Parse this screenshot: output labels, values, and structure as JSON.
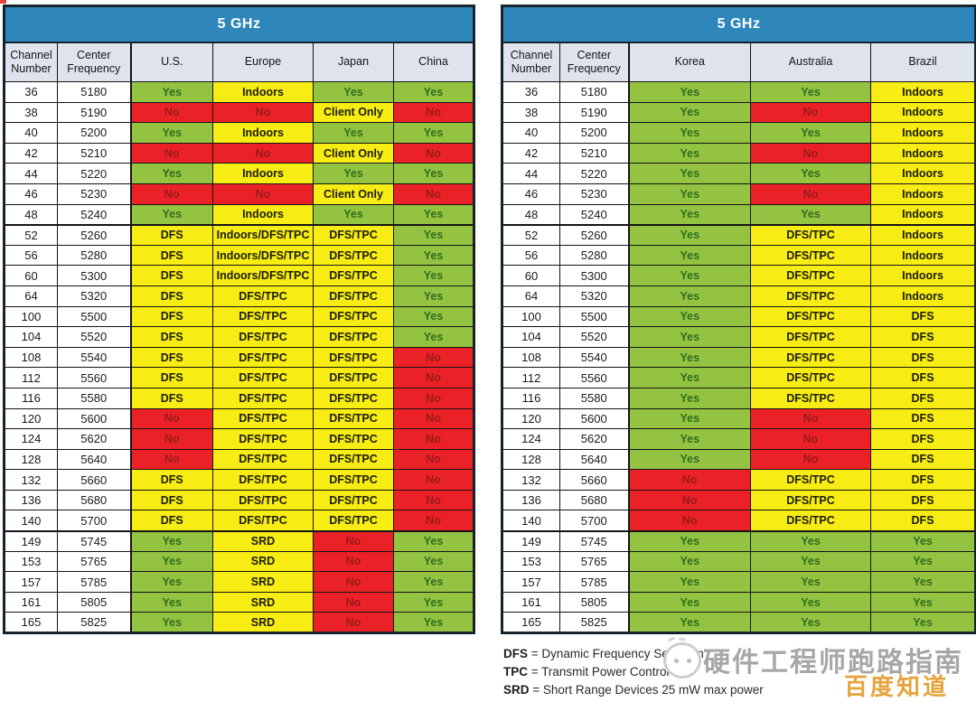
{
  "colors": {
    "header_blue": "#2e86bb",
    "column_header_bg": "#dfe3ed",
    "green": "#94c342",
    "yellow": "#f7ec13",
    "red": "#ea2127",
    "yes_text": "#2f6e1d",
    "no_text": "#9c1a1a"
  },
  "tables": [
    {
      "title": "5 GHz",
      "columns": [
        "Channel Number",
        "Center Frequency",
        "U.S.",
        "Europe",
        "Japan",
        "China"
      ],
      "rows": [
        [
          "36",
          "5180",
          "Yes",
          "Indoors",
          "Yes",
          "Yes"
        ],
        [
          "38",
          "5190",
          "No",
          "No",
          "Client Only",
          "No"
        ],
        [
          "40",
          "5200",
          "Yes",
          "Indoors",
          "Yes",
          "Yes"
        ],
        [
          "42",
          "5210",
          "No",
          "No",
          "Client Only",
          "No"
        ],
        [
          "44",
          "5220",
          "Yes",
          "Indoors",
          "Yes",
          "Yes"
        ],
        [
          "46",
          "5230",
          "No",
          "No",
          "Client Only",
          "No"
        ],
        [
          "48",
          "5240",
          "Yes",
          "Indoors",
          "Yes",
          "Yes"
        ],
        [
          "52",
          "5260",
          "DFS",
          "Indoors/DFS/TPC",
          "DFS/TPC",
          "Yes"
        ],
        [
          "56",
          "5280",
          "DFS",
          "Indoors/DFS/TPC",
          "DFS/TPC",
          "Yes"
        ],
        [
          "60",
          "5300",
          "DFS",
          "Indoors/DFS/TPC",
          "DFS/TPC",
          "Yes"
        ],
        [
          "64",
          "5320",
          "DFS",
          "DFS/TPC",
          "DFS/TPC",
          "Yes"
        ],
        [
          "100",
          "5500",
          "DFS",
          "DFS/TPC",
          "DFS/TPC",
          "Yes"
        ],
        [
          "104",
          "5520",
          "DFS",
          "DFS/TPC",
          "DFS/TPC",
          "Yes"
        ],
        [
          "108",
          "5540",
          "DFS",
          "DFS/TPC",
          "DFS/TPC",
          "No"
        ],
        [
          "112",
          "5560",
          "DFS",
          "DFS/TPC",
          "DFS/TPC",
          "No"
        ],
        [
          "116",
          "5580",
          "DFS",
          "DFS/TPC",
          "DFS/TPC",
          "No"
        ],
        [
          "120",
          "5600",
          "No",
          "DFS/TPC",
          "DFS/TPC",
          "No"
        ],
        [
          "124",
          "5620",
          "No",
          "DFS/TPC",
          "DFS/TPC",
          "No"
        ],
        [
          "128",
          "5640",
          "No",
          "DFS/TPC",
          "DFS/TPC",
          "No"
        ],
        [
          "132",
          "5660",
          "DFS",
          "DFS/TPC",
          "DFS/TPC",
          "No"
        ],
        [
          "136",
          "5680",
          "DFS",
          "DFS/TPC",
          "DFS/TPC",
          "No"
        ],
        [
          "140",
          "5700",
          "DFS",
          "DFS/TPC",
          "DFS/TPC",
          "No"
        ],
        [
          "149",
          "5745",
          "Yes",
          "SRD",
          "No",
          "Yes"
        ],
        [
          "153",
          "5765",
          "Yes",
          "SRD",
          "No",
          "Yes"
        ],
        [
          "157",
          "5785",
          "Yes",
          "SRD",
          "No",
          "Yes"
        ],
        [
          "161",
          "5805",
          "Yes",
          "SRD",
          "No",
          "Yes"
        ],
        [
          "165",
          "5825",
          "Yes",
          "SRD",
          "No",
          "Yes"
        ]
      ]
    },
    {
      "title": "5 GHz",
      "columns": [
        "Channel Number",
        "Center Frequency",
        "Korea",
        "Australia",
        "Brazil"
      ],
      "rows": [
        [
          "36",
          "5180",
          "Yes",
          "Yes",
          "Indoors"
        ],
        [
          "38",
          "5190",
          "Yes",
          "No",
          "Indoors"
        ],
        [
          "40",
          "5200",
          "Yes",
          "Yes",
          "Indoors"
        ],
        [
          "42",
          "5210",
          "Yes",
          "No",
          "Indoors"
        ],
        [
          "44",
          "5220",
          "Yes",
          "Yes",
          "Indoors"
        ],
        [
          "46",
          "5230",
          "Yes",
          "No",
          "Indoors"
        ],
        [
          "48",
          "5240",
          "Yes",
          "Yes",
          "Indoors"
        ],
        [
          "52",
          "5260",
          "Yes",
          "DFS/TPC",
          "Indoors"
        ],
        [
          "56",
          "5280",
          "Yes",
          "DFS/TPC",
          "Indoors"
        ],
        [
          "60",
          "5300",
          "Yes",
          "DFS/TPC",
          "Indoors"
        ],
        [
          "64",
          "5320",
          "Yes",
          "DFS/TPC",
          "Indoors"
        ],
        [
          "100",
          "5500",
          "Yes",
          "DFS/TPC",
          "DFS"
        ],
        [
          "104",
          "5520",
          "Yes",
          "DFS/TPC",
          "DFS"
        ],
        [
          "108",
          "5540",
          "Yes",
          "DFS/TPC",
          "DFS"
        ],
        [
          "112",
          "5560",
          "Yes",
          "DFS/TPC",
          "DFS"
        ],
        [
          "116",
          "5580",
          "Yes",
          "DFS/TPC",
          "DFS"
        ],
        [
          "120",
          "5600",
          "Yes",
          "No",
          "DFS"
        ],
        [
          "124",
          "5620",
          "Yes",
          "No",
          "DFS"
        ],
        [
          "128",
          "5640",
          "Yes",
          "No",
          "DFS"
        ],
        [
          "132",
          "5660",
          "No",
          "DFS/TPC",
          "DFS"
        ],
        [
          "136",
          "5680",
          "No",
          "DFS/TPC",
          "DFS"
        ],
        [
          "140",
          "5700",
          "No",
          "DFS/TPC",
          "DFS"
        ],
        [
          "149",
          "5745",
          "Yes",
          "Yes",
          "Yes"
        ],
        [
          "153",
          "5765",
          "Yes",
          "Yes",
          "Yes"
        ],
        [
          "157",
          "5785",
          "Yes",
          "Yes",
          "Yes"
        ],
        [
          "161",
          "5805",
          "Yes",
          "Yes",
          "Yes"
        ],
        [
          "165",
          "5825",
          "Yes",
          "Yes",
          "Yes"
        ]
      ]
    }
  ],
  "legend": [
    {
      "abbr": "DFS",
      "rest": "= Dynamic Frequency Selection"
    },
    {
      "abbr": "TPC",
      "rest": "= Transmit Power Control"
    },
    {
      "abbr": "SRD",
      "rest": "= Short Range Devices 25 mW max power"
    }
  ],
  "watermark": {
    "text": "硬件工程师跑路指南",
    "badge": "百度知道",
    "text_color": "#a7a7a7",
    "badge_color": "#e6a43c"
  }
}
